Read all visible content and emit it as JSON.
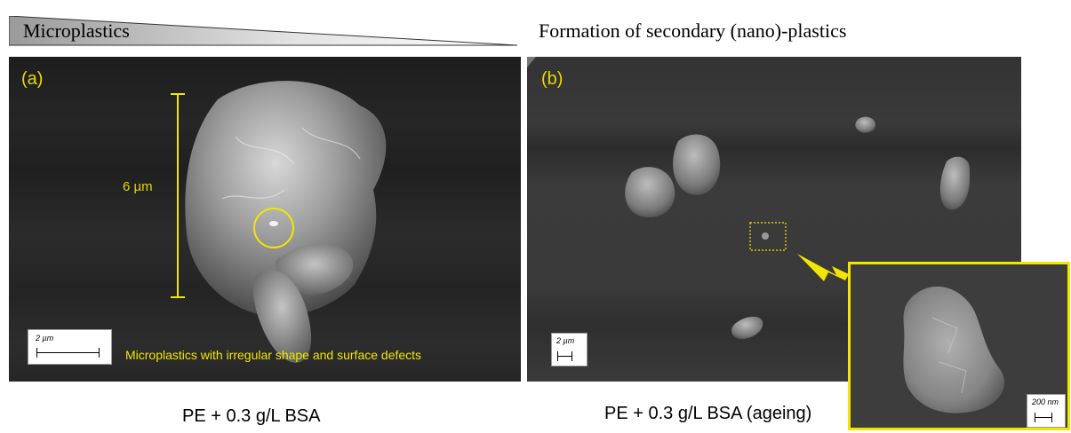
{
  "header": {
    "left_title": "Microplastics",
    "right_title": "Formation of secondary (nano)-plastics"
  },
  "panel_a": {
    "label": "(a)",
    "measure_label": "6 µm",
    "scale_label": "2 µm",
    "annotation": "Microplastics with irregular shape and surface defects",
    "caption": "PE + 0.3 g/L BSA"
  },
  "panel_b": {
    "label": "(b)",
    "scale_label": "2 µm",
    "caption": "PE + 0.3 g/L BSA (ageing)"
  },
  "inset": {
    "scale_label": "200 nm"
  },
  "colors": {
    "annotation_yellow": "#f2e600",
    "sem_background": "#2a2a2a"
  }
}
